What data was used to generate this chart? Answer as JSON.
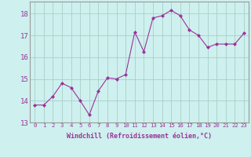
{
  "x": [
    0,
    1,
    2,
    3,
    4,
    5,
    6,
    7,
    8,
    9,
    10,
    11,
    12,
    13,
    14,
    15,
    16,
    17,
    18,
    19,
    20,
    21,
    22,
    23
  ],
  "y": [
    13.8,
    13.8,
    14.2,
    14.8,
    14.6,
    14.0,
    13.35,
    14.45,
    15.05,
    15.0,
    15.2,
    17.15,
    16.25,
    17.8,
    17.9,
    18.15,
    17.9,
    17.25,
    17.0,
    16.45,
    16.6,
    16.6,
    16.6,
    17.1
  ],
  "line_color": "#993399",
  "marker": "D",
  "marker_size": 2,
  "background_color": "#cef0ee",
  "grid_color": "#aacfc8",
  "ylabel_ticks": [
    13,
    14,
    15,
    16,
    17,
    18
  ],
  "xlabel": "Windchill (Refroidissement éolien,°C)",
  "ylim": [
    13.0,
    18.55
  ],
  "xlim": [
    -0.5,
    23.5
  ],
  "tick_color": "#993399",
  "label_color": "#993399",
  "xtick_fontsize": 5.2,
  "ytick_fontsize": 6.5,
  "xlabel_fontsize": 6.0
}
